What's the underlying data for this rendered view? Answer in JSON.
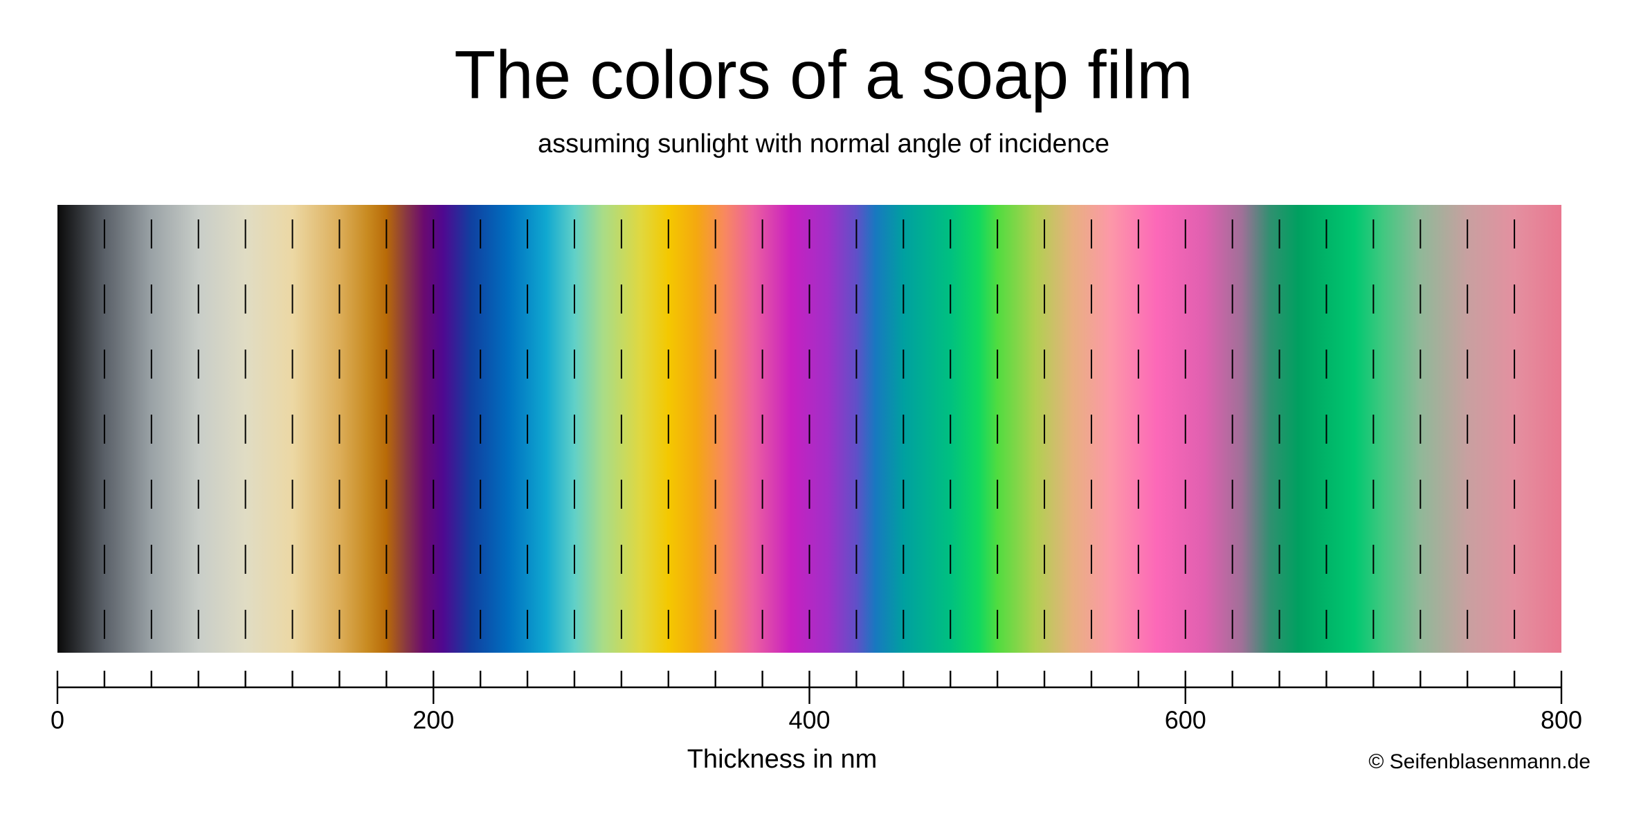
{
  "chart_data": {
    "type": "colorbar",
    "title": "The colors of a soap film",
    "subtitle": "assuming sunlight with normal angle of incidence",
    "xlabel": "Thickness in nm",
    "credit": "© Seifenblasenmann.de",
    "xlim": [
      0,
      800
    ],
    "xticks": [
      0,
      200,
      400,
      600,
      800
    ],
    "xminorticks": [
      25,
      50,
      75,
      100,
      125,
      150,
      175,
      225,
      250,
      275,
      300,
      325,
      350,
      375,
      425,
      450,
      475,
      500,
      525,
      550,
      575,
      625,
      650,
      675,
      700,
      725,
      750,
      775
    ],
    "stops": [
      {
        "x": 0,
        "color": "#0a0a0a"
      },
      {
        "x": 25,
        "color": "#5a6068"
      },
      {
        "x": 50,
        "color": "#9aa2a6"
      },
      {
        "x": 75,
        "color": "#c8cdc8"
      },
      {
        "x": 100,
        "color": "#e0dcc4"
      },
      {
        "x": 125,
        "color": "#ecd8a4"
      },
      {
        "x": 150,
        "color": "#dcae5a"
      },
      {
        "x": 165,
        "color": "#c88a20"
      },
      {
        "x": 175,
        "color": "#b86a08"
      },
      {
        "x": 185,
        "color": "#8a3a40"
      },
      {
        "x": 195,
        "color": "#6a0a70"
      },
      {
        "x": 205,
        "color": "#500890"
      },
      {
        "x": 220,
        "color": "#1040a0"
      },
      {
        "x": 240,
        "color": "#0070c0"
      },
      {
        "x": 260,
        "color": "#10a8d0"
      },
      {
        "x": 275,
        "color": "#60d0c8"
      },
      {
        "x": 290,
        "color": "#a8dc88"
      },
      {
        "x": 310,
        "color": "#e0d840"
      },
      {
        "x": 325,
        "color": "#f4c800"
      },
      {
        "x": 340,
        "color": "#f4a810"
      },
      {
        "x": 355,
        "color": "#f88860"
      },
      {
        "x": 370,
        "color": "#ec60a0"
      },
      {
        "x": 390,
        "color": "#c820c0"
      },
      {
        "x": 410,
        "color": "#a030c8"
      },
      {
        "x": 425,
        "color": "#6050c8"
      },
      {
        "x": 435,
        "color": "#1878c0"
      },
      {
        "x": 450,
        "color": "#00a0a0"
      },
      {
        "x": 475,
        "color": "#00c080"
      },
      {
        "x": 490,
        "color": "#10d860"
      },
      {
        "x": 500,
        "color": "#50dc40"
      },
      {
        "x": 520,
        "color": "#b0d050"
      },
      {
        "x": 540,
        "color": "#e8b080"
      },
      {
        "x": 560,
        "color": "#fc98a8"
      },
      {
        "x": 585,
        "color": "#fc68b8"
      },
      {
        "x": 610,
        "color": "#e060b0"
      },
      {
        "x": 630,
        "color": "#a07098"
      },
      {
        "x": 645,
        "color": "#309070"
      },
      {
        "x": 660,
        "color": "#00a060"
      },
      {
        "x": 690,
        "color": "#00c870"
      },
      {
        "x": 705,
        "color": "#40c880"
      },
      {
        "x": 725,
        "color": "#90b898"
      },
      {
        "x": 750,
        "color": "#c8a0a0"
      },
      {
        "x": 775,
        "color": "#e490a0"
      },
      {
        "x": 800,
        "color": "#e87890"
      }
    ]
  }
}
